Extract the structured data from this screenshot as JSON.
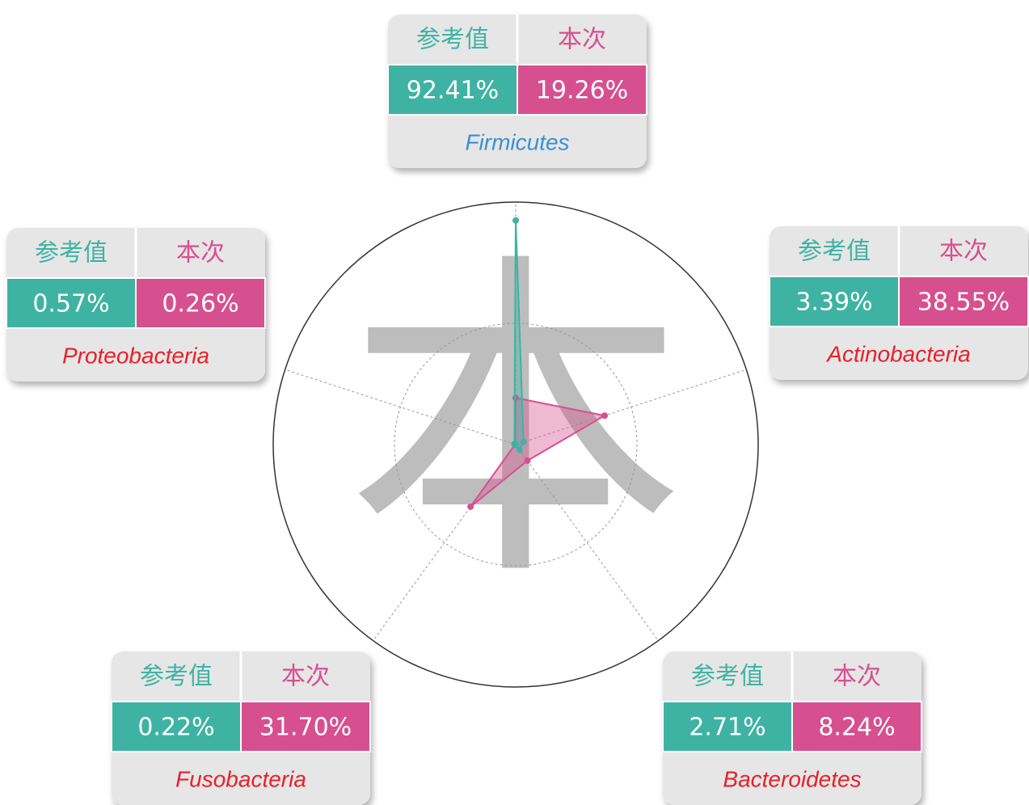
{
  "chart_data": {
    "type": "radar",
    "watermark": "本",
    "categories": [
      "Firmicutes",
      "Actinobacteria",
      "Bacteroidetes",
      "Fusobacteria",
      "Proteobacteria"
    ],
    "label_colors": [
      "#3a8fd6",
      "#e8202a",
      "#e8202a",
      "#e8202a",
      "#e8202a"
    ],
    "series": [
      {
        "name": "参考值",
        "color": "#3fb3a3",
        "values": [
          92.41,
          3.39,
          2.71,
          0.22,
          0.57
        ],
        "value_labels": [
          "92.41%",
          "3.39%",
          "2.71%",
          "0.22%",
          "0.57%"
        ]
      },
      {
        "name": "本次",
        "color": "#d6508f",
        "values": [
          19.26,
          38.55,
          8.24,
          31.7,
          0.26
        ],
        "value_labels": [
          "19.26%",
          "38.55%",
          "8.24%",
          "31.70%",
          "0.26%"
        ]
      }
    ],
    "ylim": [
      0,
      100
    ],
    "yticks": [
      50,
      100
    ]
  }
}
